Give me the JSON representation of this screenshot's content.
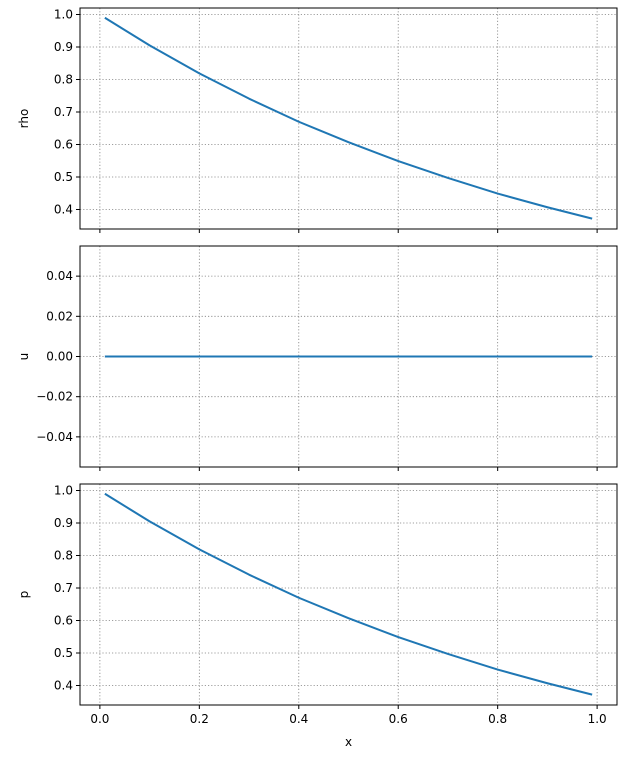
{
  "chart_data": [
    {
      "type": "line",
      "ylabel": "rho",
      "xlim": [
        -0.04,
        1.04
      ],
      "ylim": [
        0.34,
        1.02
      ],
      "xticks": [
        0.0,
        0.2,
        0.4,
        0.6,
        0.8,
        1.0
      ],
      "yticks": [
        0.4,
        0.5,
        0.6,
        0.7,
        0.8,
        0.9,
        1.0
      ],
      "yticklabels": [
        "0.4",
        "0.5",
        "0.6",
        "0.7",
        "0.8",
        "0.9",
        "1.0"
      ],
      "show_xticklabels": false,
      "grid": true,
      "series": [
        {
          "color": "#1f77b4",
          "x": [
            0.01,
            0.1,
            0.2,
            0.3,
            0.4,
            0.5,
            0.6,
            0.7,
            0.8,
            0.9,
            0.99
          ],
          "y": [
            0.99,
            0.905,
            0.819,
            0.741,
            0.67,
            0.607,
            0.549,
            0.497,
            0.449,
            0.407,
            0.372
          ]
        }
      ]
    },
    {
      "type": "line",
      "ylabel": "u",
      "xlim": [
        -0.04,
        1.04
      ],
      "ylim": [
        -0.055,
        0.055
      ],
      "xticks": [
        0.0,
        0.2,
        0.4,
        0.6,
        0.8,
        1.0
      ],
      "yticks": [
        -0.04,
        -0.02,
        0.0,
        0.02,
        0.04
      ],
      "yticklabels": [
        "−0.04",
        "−0.02",
        "0.00",
        "0.02",
        "0.04"
      ],
      "show_xticklabels": false,
      "grid": true,
      "series": [
        {
          "color": "#1f77b4",
          "x": [
            0.01,
            0.99
          ],
          "y": [
            0.0,
            0.0
          ]
        }
      ]
    },
    {
      "type": "line",
      "ylabel": "p",
      "xlabel": "x",
      "xlim": [
        -0.04,
        1.04
      ],
      "ylim": [
        0.34,
        1.02
      ],
      "xticks": [
        0.0,
        0.2,
        0.4,
        0.6,
        0.8,
        1.0
      ],
      "xticklabels": [
        "0.0",
        "0.2",
        "0.4",
        "0.6",
        "0.8",
        "1.0"
      ],
      "yticks": [
        0.4,
        0.5,
        0.6,
        0.7,
        0.8,
        0.9,
        1.0
      ],
      "yticklabels": [
        "0.4",
        "0.5",
        "0.6",
        "0.7",
        "0.8",
        "0.9",
        "1.0"
      ],
      "show_xticklabels": true,
      "grid": true,
      "series": [
        {
          "color": "#1f77b4",
          "x": [
            0.01,
            0.1,
            0.2,
            0.3,
            0.4,
            0.5,
            0.6,
            0.7,
            0.8,
            0.9,
            0.99
          ],
          "y": [
            0.99,
            0.905,
            0.819,
            0.741,
            0.67,
            0.607,
            0.549,
            0.497,
            0.449,
            0.407,
            0.372
          ]
        }
      ]
    }
  ]
}
